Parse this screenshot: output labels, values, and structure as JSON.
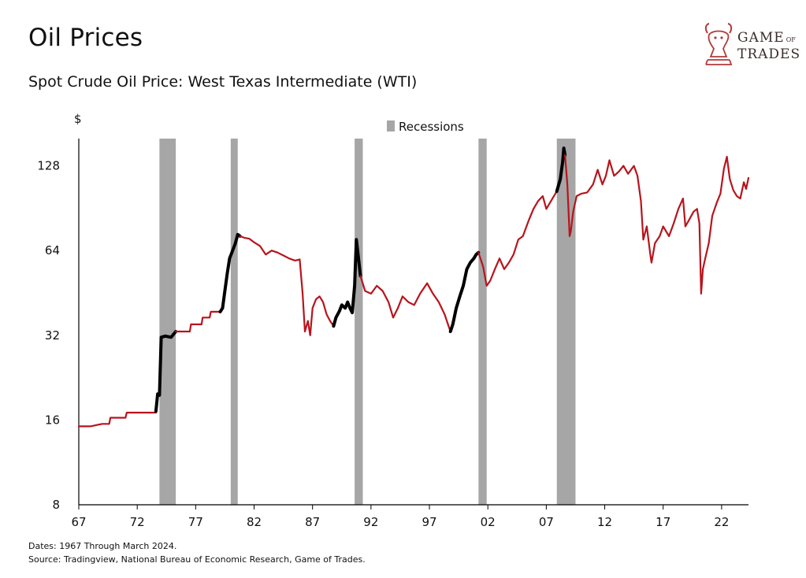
{
  "header": {
    "title": "Oil Prices",
    "subtitle": "Spot Crude Oil Price: West Texas Intermediate (WTI)"
  },
  "logo": {
    "line1": "GAME",
    "line1_small": "OF",
    "line2": "TRADES"
  },
  "footnotes": {
    "dates": "Dates: 1967 Through March 2024.",
    "source": "Source: Tradingview, National Bureau of Economic Research, Game of Trades."
  },
  "colors": {
    "line": "#b8141c",
    "highlight": "#000000",
    "recession": "#a6a6a6",
    "logo": "#c0392b"
  },
  "chart_data": {
    "type": "line",
    "title": "Spot Crude Oil Price: West Texas Intermediate (WTI)",
    "ylabel": "$",
    "yscale": "log2",
    "ylim": [
      8,
      160
    ],
    "xlim": [
      1967,
      2024.3
    ],
    "yticks": [
      8,
      16,
      32,
      64,
      128
    ],
    "xticks": [
      1967,
      1972,
      1977,
      1982,
      1987,
      1992,
      1997,
      2002,
      2007,
      2012,
      2017,
      2022
    ],
    "xtick_labels": [
      "67",
      "72",
      "77",
      "82",
      "87",
      "92",
      "97",
      "02",
      "07",
      "12",
      "17",
      "22"
    ],
    "legend": {
      "label": "Recessions",
      "position": "top-center"
    },
    "recessions": [
      [
        1973.9,
        1975.3
      ],
      [
        1980.0,
        1980.6
      ],
      [
        1990.6,
        1991.3
      ],
      [
        2001.2,
        2001.9
      ],
      [
        2007.9,
        2009.5
      ]
    ],
    "series": [
      {
        "name": "WTI",
        "points": [
          [
            1967.0,
            15.2
          ],
          [
            1968.0,
            15.2
          ],
          [
            1969.0,
            15.5
          ],
          [
            1969.6,
            15.5
          ],
          [
            1969.7,
            16.3
          ],
          [
            1971.0,
            16.3
          ],
          [
            1971.1,
            17.0
          ],
          [
            1973.6,
            17.0
          ]
        ]
      },
      {
        "highlight": true,
        "points": [
          [
            1973.6,
            17.2
          ],
          [
            1973.75,
            19.8
          ],
          [
            1973.9,
            19.6
          ],
          [
            1974.05,
            31.5
          ],
          [
            1974.4,
            31.8
          ],
          [
            1974.9,
            31.5
          ],
          [
            1975.3,
            33.0
          ]
        ]
      },
      {
        "points": [
          [
            1975.3,
            33.0
          ],
          [
            1976.5,
            33.0
          ],
          [
            1976.6,
            35.0
          ],
          [
            1977.5,
            35.0
          ],
          [
            1977.6,
            37.0
          ],
          [
            1978.2,
            37.0
          ],
          [
            1978.3,
            38.8
          ],
          [
            1979.1,
            38.8
          ]
        ]
      },
      {
        "highlight": true,
        "points": [
          [
            1979.1,
            38.8
          ],
          [
            1979.3,
            40.0
          ],
          [
            1979.5,
            46.0
          ],
          [
            1979.7,
            53.0
          ],
          [
            1979.9,
            60.0
          ],
          [
            1980.1,
            63.0
          ],
          [
            1980.4,
            68.0
          ],
          [
            1980.6,
            73.0
          ],
          [
            1980.8,
            72.0
          ]
        ]
      },
      {
        "points": [
          [
            1980.8,
            72.0
          ],
          [
            1981.2,
            71.0
          ],
          [
            1981.6,
            70.5
          ],
          [
            1982.0,
            68.5
          ],
          [
            1982.5,
            66.5
          ],
          [
            1983.0,
            62.0
          ],
          [
            1983.5,
            64.0
          ],
          [
            1984.0,
            63.0
          ],
          [
            1984.5,
            61.5
          ],
          [
            1985.0,
            60.0
          ],
          [
            1985.5,
            59.0
          ],
          [
            1985.9,
            59.5
          ],
          [
            1986.15,
            45.0
          ],
          [
            1986.35,
            33.0
          ],
          [
            1986.6,
            36.0
          ],
          [
            1986.8,
            32.0
          ],
          [
            1987.0,
            40.0
          ],
          [
            1987.3,
            43.0
          ],
          [
            1987.6,
            44.0
          ],
          [
            1987.9,
            42.0
          ],
          [
            1988.2,
            38.0
          ],
          [
            1988.5,
            36.0
          ],
          [
            1988.8,
            34.5
          ]
        ]
      },
      {
        "highlight": true,
        "points": [
          [
            1988.8,
            34.5
          ],
          [
            1989.0,
            37.0
          ],
          [
            1989.3,
            39.0
          ],
          [
            1989.5,
            41.0
          ],
          [
            1989.8,
            40.0
          ],
          [
            1990.0,
            42.0
          ],
          [
            1990.2,
            40.0
          ],
          [
            1990.4,
            38.5
          ],
          [
            1990.6,
            48.0
          ],
          [
            1990.75,
            70.0
          ],
          [
            1990.9,
            62.0
          ],
          [
            1991.1,
            52.0
          ]
        ]
      },
      {
        "points": [
          [
            1991.1,
            52.0
          ],
          [
            1991.5,
            46.0
          ],
          [
            1992.0,
            45.0
          ],
          [
            1992.5,
            48.0
          ],
          [
            1993.0,
            46.0
          ],
          [
            1993.5,
            42.0
          ],
          [
            1993.9,
            37.0
          ],
          [
            1994.3,
            40.0
          ],
          [
            1994.7,
            44.0
          ],
          [
            1995.2,
            42.0
          ],
          [
            1995.7,
            41.0
          ],
          [
            1996.2,
            45.0
          ],
          [
            1996.8,
            49.0
          ],
          [
            1997.3,
            45.0
          ],
          [
            1997.8,
            42.0
          ],
          [
            1998.3,
            38.0
          ],
          [
            1998.8,
            33.0
          ]
        ]
      },
      {
        "highlight": true,
        "points": [
          [
            1998.8,
            33.0
          ],
          [
            1999.0,
            35.0
          ],
          [
            1999.3,
            40.0
          ],
          [
            1999.6,
            44.0
          ],
          [
            1999.9,
            48.0
          ],
          [
            2000.2,
            55.0
          ],
          [
            2000.5,
            58.0
          ],
          [
            2000.8,
            60.0
          ],
          [
            2001.0,
            62.0
          ],
          [
            2001.2,
            63.0
          ]
        ]
      },
      {
        "points": [
          [
            2001.2,
            63.0
          ],
          [
            2001.6,
            56.0
          ],
          [
            2001.9,
            48.0
          ],
          [
            2002.2,
            50.0
          ],
          [
            2002.6,
            55.0
          ],
          [
            2003.0,
            60.0
          ],
          [
            2003.4,
            55.0
          ],
          [
            2003.8,
            58.0
          ],
          [
            2004.2,
            62.0
          ],
          [
            2004.6,
            70.0
          ],
          [
            2005.0,
            72.0
          ],
          [
            2005.5,
            82.0
          ],
          [
            2005.9,
            90.0
          ],
          [
            2006.3,
            96.0
          ],
          [
            2006.7,
            100.0
          ],
          [
            2007.0,
            90.0
          ],
          [
            2007.4,
            96.0
          ],
          [
            2007.9,
            104.0
          ]
        ]
      },
      {
        "highlight": true,
        "points": [
          [
            2007.9,
            104.0
          ],
          [
            2008.2,
            115.0
          ],
          [
            2008.4,
            132.0
          ],
          [
            2008.5,
            148.0
          ],
          [
            2008.6,
            140.0
          ]
        ]
      },
      {
        "points": [
          [
            2008.6,
            140.0
          ],
          [
            2008.8,
            110.0
          ],
          [
            2009.0,
            72.0
          ],
          [
            2009.1,
            75.0
          ],
          [
            2009.3,
            88.0
          ],
          [
            2009.6,
            100.0
          ],
          [
            2010.0,
            102.0
          ],
          [
            2010.5,
            103.0
          ],
          [
            2011.0,
            110.0
          ],
          [
            2011.4,
            124.0
          ],
          [
            2011.8,
            110.0
          ],
          [
            2012.1,
            118.0
          ],
          [
            2012.4,
            134.0
          ],
          [
            2012.8,
            118.0
          ],
          [
            2013.2,
            122.0
          ],
          [
            2013.6,
            128.0
          ],
          [
            2014.0,
            120.0
          ],
          [
            2014.5,
            128.0
          ],
          [
            2014.8,
            118.0
          ],
          [
            2015.1,
            96.0
          ],
          [
            2015.3,
            70.0
          ],
          [
            2015.6,
            78.0
          ],
          [
            2015.9,
            62.0
          ],
          [
            2016.0,
            58.0
          ],
          [
            2016.3,
            68.0
          ],
          [
            2016.7,
            72.0
          ],
          [
            2017.0,
            78.0
          ],
          [
            2017.5,
            72.0
          ],
          [
            2017.9,
            80.0
          ],
          [
            2018.3,
            90.0
          ],
          [
            2018.7,
            98.0
          ],
          [
            2018.9,
            78.0
          ],
          [
            2019.2,
            82.0
          ],
          [
            2019.6,
            88.0
          ],
          [
            2019.9,
            90.0
          ],
          [
            2020.1,
            80.0
          ],
          [
            2020.25,
            45.0
          ],
          [
            2020.4,
            55.0
          ],
          [
            2020.6,
            60.0
          ],
          [
            2020.9,
            68.0
          ],
          [
            2021.2,
            85.0
          ],
          [
            2021.6,
            95.0
          ],
          [
            2021.9,
            102.0
          ],
          [
            2022.2,
            125.0
          ],
          [
            2022.45,
            138.0
          ],
          [
            2022.7,
            115.0
          ],
          [
            2023.0,
            105.0
          ],
          [
            2023.3,
            100.0
          ],
          [
            2023.6,
            98.0
          ],
          [
            2023.9,
            112.0
          ],
          [
            2024.1,
            106.0
          ],
          [
            2024.3,
            116.0
          ]
        ]
      }
    ]
  }
}
